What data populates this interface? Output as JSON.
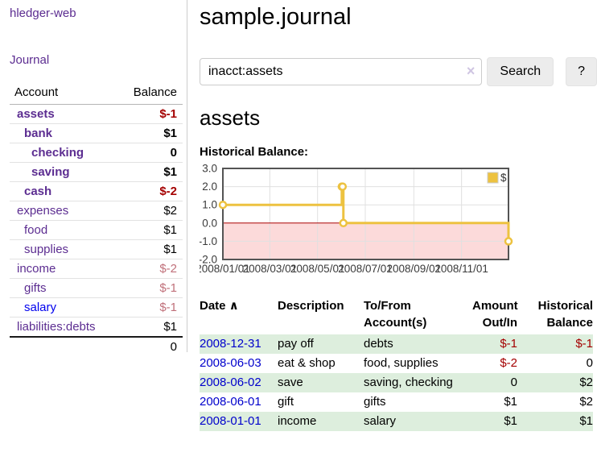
{
  "app": {
    "brand": "hledger-web",
    "nav_journal": "Journal"
  },
  "colors": {
    "accent_purple": "#5c2d91",
    "link_blue": "#0000ee",
    "date_link_blue": "#0000cc",
    "negative_strong": "#a40000",
    "negative_soft": "#c0707a",
    "row_green": "#ddeedd",
    "chart_gold": "#edc240",
    "chart_negative_bg": "#fcdada",
    "chart_zero_line": "#aa0000",
    "chart_border": "#545454"
  },
  "sidebar": {
    "accounts_header": {
      "account": "Account",
      "balance": "Balance"
    },
    "accounts": [
      {
        "name": "assets",
        "balance": "$-1",
        "indent": 1,
        "bold": true,
        "balance_style": "neg-strong",
        "blue": false
      },
      {
        "name": "bank",
        "balance": "$1",
        "indent": 2,
        "bold": true,
        "balance_style": "pos",
        "blue": false
      },
      {
        "name": "checking",
        "balance": "0",
        "indent": 3,
        "bold": true,
        "balance_style": "pos",
        "blue": false
      },
      {
        "name": "saving",
        "balance": "$1",
        "indent": 3,
        "bold": true,
        "balance_style": "pos",
        "blue": false
      },
      {
        "name": "cash",
        "balance": "$-2",
        "indent": 2,
        "bold": true,
        "balance_style": "neg-strong",
        "blue": false
      },
      {
        "name": "expenses",
        "balance": "$2",
        "indent": 1,
        "bold": false,
        "balance_style": "pos",
        "blue": false
      },
      {
        "name": "food",
        "balance": "$1",
        "indent": 2,
        "bold": false,
        "balance_style": "pos",
        "blue": false
      },
      {
        "name": "supplies",
        "balance": "$1",
        "indent": 2,
        "bold": false,
        "balance_style": "pos",
        "blue": false
      },
      {
        "name": "income",
        "balance": "$-2",
        "indent": 1,
        "bold": false,
        "balance_style": "neg-soft",
        "blue": false
      },
      {
        "name": "gifts",
        "balance": "$-1",
        "indent": 2,
        "bold": false,
        "balance_style": "neg-soft",
        "blue": false
      },
      {
        "name": "salary",
        "balance": "$-1",
        "indent": 2,
        "bold": false,
        "balance_style": "neg-soft",
        "blue": true
      },
      {
        "name": "liabilities:debts",
        "balance": "$1",
        "indent": 1,
        "bold": false,
        "balance_style": "pos",
        "blue": false
      }
    ],
    "total": "0"
  },
  "header": {
    "title": "sample.journal"
  },
  "search": {
    "value": "inacct:assets",
    "clear_icon": "×",
    "button": "Search",
    "help_button": "?"
  },
  "account_page": {
    "heading": "assets",
    "chart_label": "Historical Balance:"
  },
  "chart_data": {
    "type": "line",
    "step": true,
    "title": "Historical Balance:",
    "series": [
      {
        "name": "$",
        "color": "#edc240",
        "points": [
          [
            "2008-01-01",
            1
          ],
          [
            "2008-06-01",
            2
          ],
          [
            "2008-06-02",
            2
          ],
          [
            "2008-06-03",
            0
          ],
          [
            "2008-12-31",
            -1
          ]
        ]
      }
    ],
    "x_range": [
      "2008-01-01",
      "2008-12-31"
    ],
    "x_ticks": [
      "2008/01/01",
      "2008/03/01",
      "2008/05/01",
      "2008/07/01",
      "2008/09/01",
      "2008/11/01"
    ],
    "y_ticks": [
      "3.0",
      "2.0",
      "1.0",
      "0.0",
      "-1.0",
      "-2.0"
    ],
    "ylim": [
      -2,
      3
    ],
    "grid": true,
    "legend": {
      "label": "$",
      "position": "top-right"
    },
    "negative_region_color": "#fcdada",
    "zero_line_color": "#aa0000"
  },
  "register": {
    "columns": [
      {
        "label": "Date",
        "align": "left",
        "sort_indicator": "∧"
      },
      {
        "label": "Description",
        "align": "left"
      },
      {
        "label": "To/From Account(s)",
        "align": "left"
      },
      {
        "label": "Amount Out/In",
        "align": "right"
      },
      {
        "label": "Historical Balance",
        "align": "right"
      }
    ],
    "rows": [
      {
        "date": "2008-12-31",
        "description": "pay off",
        "accounts": "debts",
        "amount": "$-1",
        "amount_neg": true,
        "balance": "$-1",
        "balance_neg": true
      },
      {
        "date": "2008-06-03",
        "description": "eat & shop",
        "accounts": "food, supplies",
        "amount": "$-2",
        "amount_neg": true,
        "balance": "0",
        "balance_neg": false
      },
      {
        "date": "2008-06-02",
        "description": "save",
        "accounts": "saving, checking",
        "amount": "0",
        "amount_neg": false,
        "balance": "$2",
        "balance_neg": false
      },
      {
        "date": "2008-06-01",
        "description": "gift",
        "accounts": "gifts",
        "amount": "$1",
        "amount_neg": false,
        "balance": "$2",
        "balance_neg": false
      },
      {
        "date": "2008-01-01",
        "description": "income",
        "accounts": "salary",
        "amount": "$1",
        "amount_neg": false,
        "balance": "$1",
        "balance_neg": false
      }
    ]
  }
}
